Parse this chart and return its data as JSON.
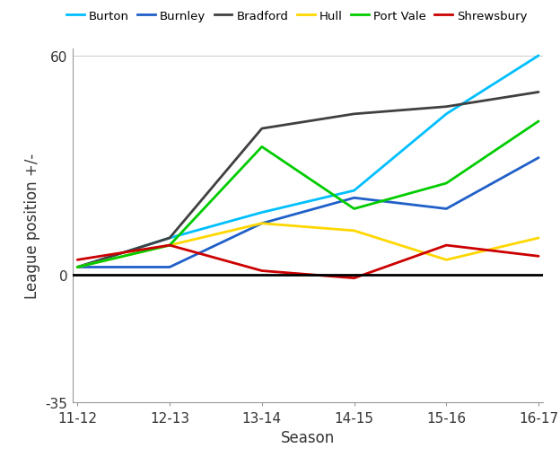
{
  "seasons": [
    "11-12",
    "12-13",
    "13-14",
    "14-15",
    "15-16",
    "16-17"
  ],
  "series": [
    {
      "name": "Burton",
      "color": "#00BFFF",
      "values": [
        2,
        10,
        17,
        23,
        44,
        60
      ]
    },
    {
      "name": "Burnley",
      "color": "#1F5FC8",
      "values": [
        2,
        2,
        14,
        21,
        18,
        32
      ]
    },
    {
      "name": "Bradford",
      "color": "#404040",
      "values": [
        2,
        10,
        40,
        44,
        46,
        50
      ]
    },
    {
      "name": "Hull",
      "color": "#FFD700",
      "values": [
        2,
        8,
        14,
        12,
        4,
        10
      ]
    },
    {
      "name": "Port Vale",
      "color": "#00CC00",
      "values": [
        2,
        8,
        35,
        18,
        25,
        42
      ]
    },
    {
      "name": "Shrewsbury",
      "color": "#CC0000",
      "values": [
        4,
        8,
        1,
        -1,
        8,
        5
      ]
    }
  ],
  "xlabel": "Season",
  "ylabel": "League position +/-",
  "ylim": [
    -35,
    62
  ],
  "yticks": [
    -35,
    0,
    60
  ],
  "zero_line": true,
  "background_color": "#ffffff",
  "grid_color": "#cccccc",
  "figsize": [
    6.24,
    5.1
  ],
  "dpi": 100
}
